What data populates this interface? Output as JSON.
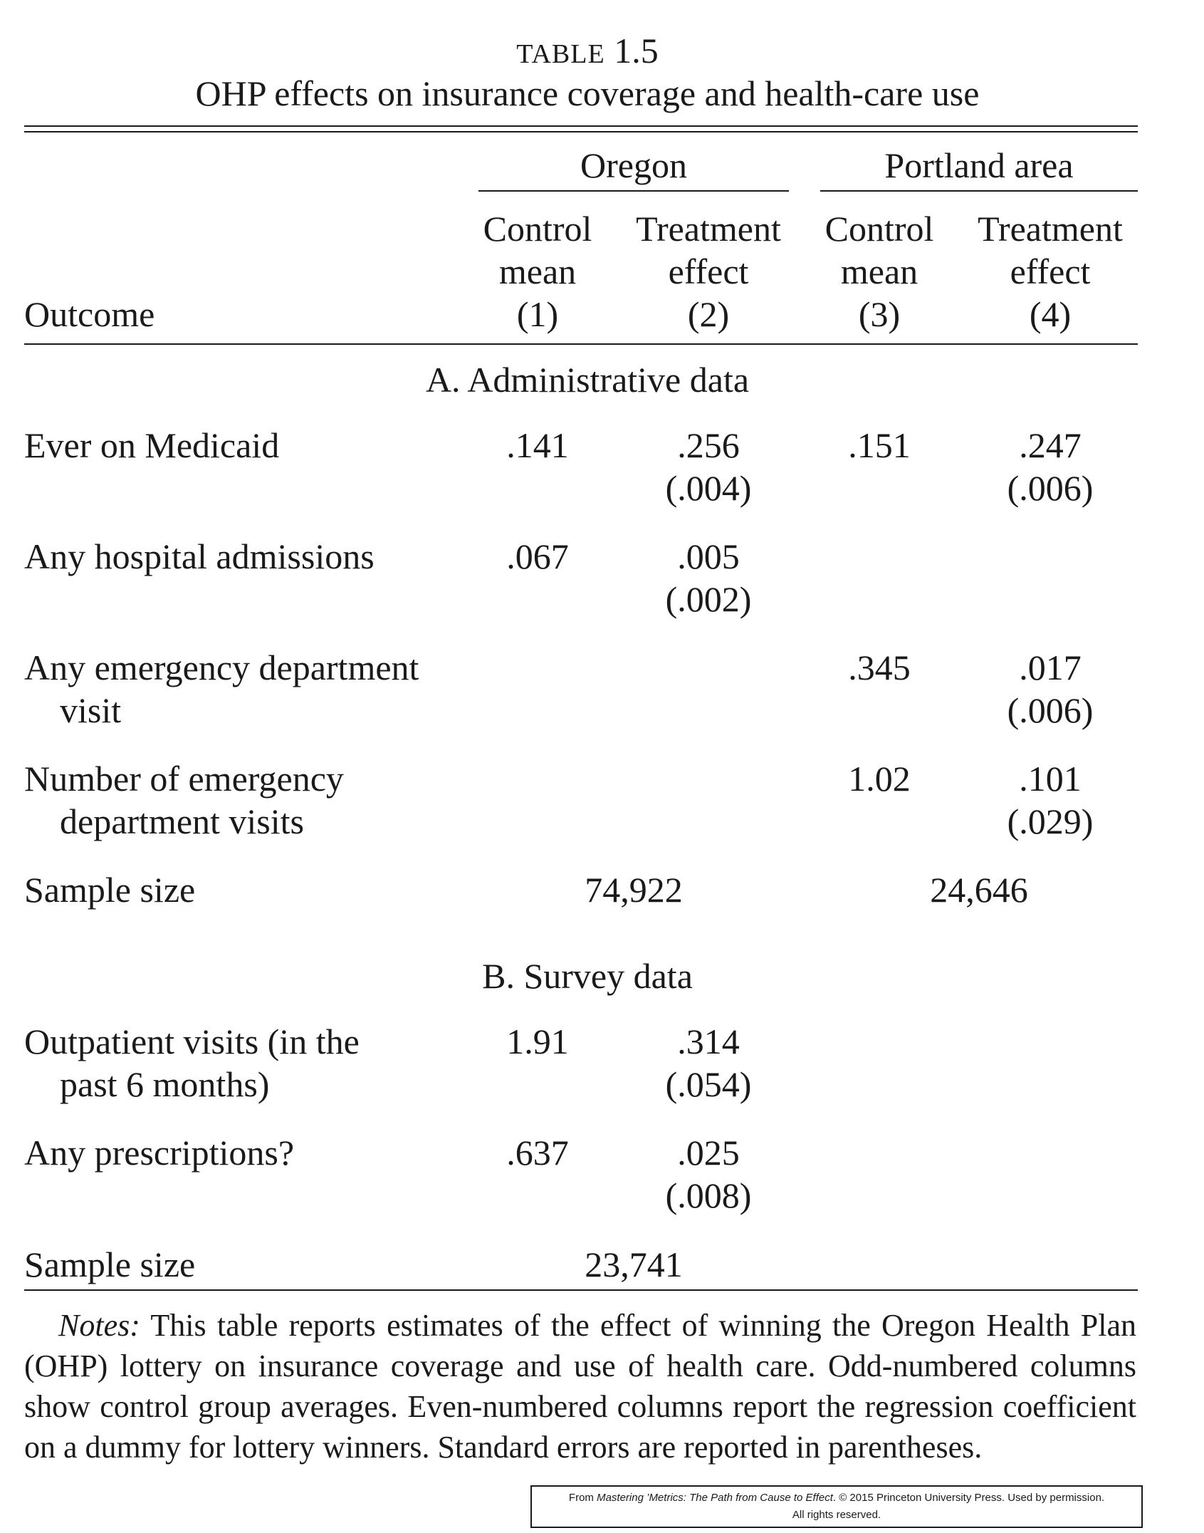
{
  "table": {
    "label_word": "TABLE",
    "label_number": "1.5",
    "title": "OHP effects on insurance coverage and health-care use",
    "group_headers": [
      "Oregon",
      "Portland area"
    ],
    "column_headers": [
      {
        "line1": "Control",
        "line2": "mean",
        "num": "(1)"
      },
      {
        "line1": "Treatment",
        "line2": "effect",
        "num": "(2)"
      },
      {
        "line1": "Control",
        "line2": "mean",
        "num": "(3)"
      },
      {
        "line1": "Treatment",
        "line2": "effect",
        "num": "(4)"
      }
    ],
    "outcome_header": "Outcome",
    "panel_a": {
      "title": "A. Administrative data",
      "rows": [
        {
          "label1": "Ever on Medicaid",
          "label2": "",
          "c1": ".141",
          "c2": ".256",
          "c2se": "(.004)",
          "c3": ".151",
          "c4": ".247",
          "c4se": "(.006)"
        },
        {
          "label1": "Any hospital admissions",
          "label2": "",
          "c1": ".067",
          "c2": ".005",
          "c2se": "(.002)",
          "c3": "",
          "c4": "",
          "c4se": ""
        },
        {
          "label1": "Any emergency department",
          "label2": "visit",
          "c1": "",
          "c2": "",
          "c2se": "",
          "c3": ".345",
          "c4": ".017",
          "c4se": "(.006)"
        },
        {
          "label1": "Number of emergency",
          "label2": "department visits",
          "c1": "",
          "c2": "",
          "c2se": "",
          "c3": "1.02",
          "c4": ".101",
          "c4se": "(.029)"
        }
      ],
      "sample_label": "Sample size",
      "sample_oregon": "74,922",
      "sample_portland": "24,646"
    },
    "panel_b": {
      "title": "B. Survey data",
      "rows": [
        {
          "label1": "Outpatient visits (in the",
          "label2": "past 6 months)",
          "c1": "1.91",
          "c2": ".314",
          "c2se": "(.054)"
        },
        {
          "label1": "Any prescriptions?",
          "label2": "",
          "c1": ".637",
          "c2": ".025",
          "c2se": "(.008)"
        }
      ],
      "sample_label": "Sample size",
      "sample_oregon": "23,741"
    },
    "notes_label": "Notes:",
    "notes_text": " This table reports estimates of the effect of winning the Oregon Health Plan (OHP) lottery on insurance coverage and use of health care. Odd-numbered columns show control group averages. Even-numbered columns report the regression coefficient on a dummy for lottery winners. Standard errors are reported in parentheses.",
    "credit_prefix": "From ",
    "credit_title": "Mastering ’Metrics: The Path from Cause to Effect",
    "credit_suffix": ". © 2015 Princeton University Press. Used by permission.",
    "credit_line2": "All rights reserved."
  }
}
